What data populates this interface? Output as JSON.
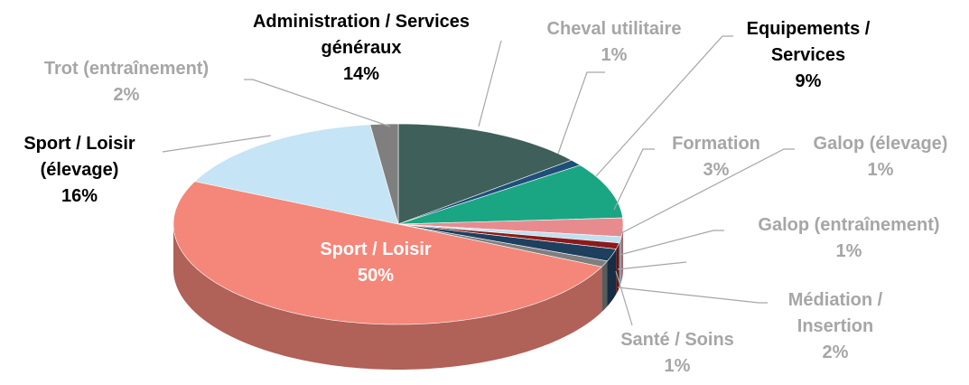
{
  "chart_data": {
    "type": "pie3d",
    "categories": [
      "Administration / Services généraux",
      "Cheval utilitaire",
      "Equipements / Services",
      "Formation",
      "Galop (élevage)",
      "Galop (entraînement)",
      "Médiation / Insertion",
      "Santé / Soins",
      "Sport / Loisir",
      "Sport / Loisir (élevage)",
      "Trot (entraînement)"
    ],
    "values": [
      14,
      1,
      9,
      3,
      1,
      1,
      2,
      1,
      50,
      16,
      2
    ],
    "value_labels": [
      "14%",
      "1%",
      "9%",
      "3%",
      "1%",
      "1%",
      "2%",
      "1%",
      "50%",
      "16%",
      "2%"
    ],
    "colors": [
      "#3f5f5a",
      "#1f4e79",
      "#1aa683",
      "#e88b8f",
      "#bfe0f0",
      "#8b1a1a",
      "#1f3f5f",
      "#7f7f7f",
      "#f4877a",
      "#c5e4f5",
      "#7f7f7f"
    ]
  }
}
